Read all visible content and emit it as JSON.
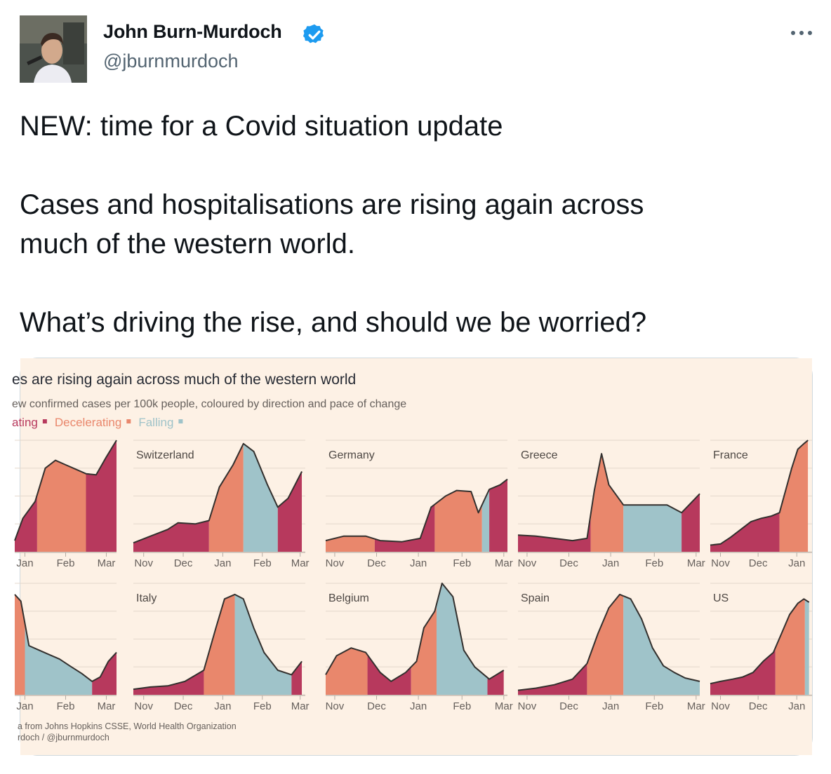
{
  "tweet": {
    "author_name": "John Burn-Murdoch",
    "handle": "@jburnmurdoch",
    "verified": true,
    "text_lines": [
      "NEW: time for a Covid situation update",
      "Cases and hospitalisations are rising again across",
      "much of the western world.",
      "What’s driving the rise, and should we be worried?"
    ]
  },
  "icons": {
    "verified": "verified-badge-icon",
    "more": "more-options-icon",
    "avatar": "avatar"
  },
  "colors": {
    "accelerating": "#b7395d",
    "decelerating": "#e9876c",
    "falling": "#9fc3c9",
    "background": "#fdf1e5",
    "verified": "#1d9bf0"
  },
  "chart_data": {
    "type": "area",
    "title": "es are rising again across much of the western world",
    "subtitle": "ew confirmed cases per 100k people, coloured by direction and pace of change",
    "legend": [
      {
        "label": "ating",
        "category": "accelerating"
      },
      {
        "label": "Decelerating",
        "category": "decelerating"
      },
      {
        "label": "Falling",
        "category": "falling"
      }
    ],
    "source_lines": [
      "a from Johns Hopkins CSSE, World Health Organization",
      "rdoch / @jburnmurdoch"
    ],
    "panels": [
      {
        "row": 0,
        "col": 0,
        "name": "",
        "ticks": [
          "Jan",
          "Feb",
          "Mar"
        ],
        "tickx": [
          0.1,
          0.5,
          0.9
        ],
        "values": [
          [
            0,
            0.1
          ],
          [
            0.08,
            0.3
          ],
          [
            0.2,
            0.45
          ],
          [
            0.3,
            0.75
          ],
          [
            0.4,
            0.82
          ],
          [
            0.5,
            0.78
          ],
          [
            0.6,
            0.74
          ],
          [
            0.7,
            0.7
          ],
          [
            0.8,
            0.69
          ],
          [
            0.9,
            0.85
          ],
          [
            1,
            1.0
          ]
        ],
        "segments": [
          [
            0.22,
            "accelerating"
          ],
          [
            0.7,
            "decelerating"
          ],
          [
            1,
            "accelerating"
          ]
        ]
      },
      {
        "row": 0,
        "col": 1,
        "name": "Switzerland",
        "ticks": [
          "Nov",
          "Dec",
          "Jan",
          "Feb",
          "Mar"
        ],
        "tickx": [
          0.06,
          0.29,
          0.52,
          0.75,
          0.97
        ],
        "values": [
          [
            0,
            0.08
          ],
          [
            0.1,
            0.14
          ],
          [
            0.2,
            0.2
          ],
          [
            0.26,
            0.26
          ],
          [
            0.36,
            0.25
          ],
          [
            0.44,
            0.28
          ],
          [
            0.5,
            0.58
          ],
          [
            0.58,
            0.78
          ],
          [
            0.64,
            0.97
          ],
          [
            0.7,
            0.9
          ],
          [
            0.78,
            0.6
          ],
          [
            0.84,
            0.4
          ],
          [
            0.9,
            0.48
          ],
          [
            0.98,
            0.72
          ]
        ],
        "segments": [
          [
            0.44,
            "accelerating"
          ],
          [
            0.64,
            "decelerating"
          ],
          [
            0.84,
            "falling"
          ],
          [
            0.98,
            "accelerating"
          ]
        ]
      },
      {
        "row": 0,
        "col": 2,
        "name": "Germany",
        "ticks": [
          "Nov",
          "Dec",
          "Jan",
          "Feb",
          "Mar"
        ],
        "tickx": [
          0.05,
          0.28,
          0.51,
          0.75,
          0.98
        ],
        "values": [
          [
            0,
            0.1
          ],
          [
            0.1,
            0.14
          ],
          [
            0.22,
            0.14
          ],
          [
            0.3,
            0.1
          ],
          [
            0.42,
            0.09
          ],
          [
            0.52,
            0.12
          ],
          [
            0.58,
            0.4
          ],
          [
            0.66,
            0.5
          ],
          [
            0.72,
            0.55
          ],
          [
            0.8,
            0.54
          ],
          [
            0.84,
            0.35
          ],
          [
            0.9,
            0.56
          ],
          [
            0.96,
            0.6
          ],
          [
            1,
            0.65
          ]
        ],
        "segments": [
          [
            0.27,
            "decelerating"
          ],
          [
            0.6,
            "accelerating"
          ],
          [
            0.86,
            "decelerating"
          ],
          [
            0.9,
            "falling"
          ],
          [
            1,
            "accelerating"
          ]
        ]
      },
      {
        "row": 0,
        "col": 3,
        "name": "Greece",
        "ticks": [
          "Nov",
          "Dec",
          "Jan",
          "Feb",
          "Mar"
        ],
        "tickx": [
          0.05,
          0.28,
          0.51,
          0.75,
          0.98
        ],
        "values": [
          [
            0,
            0.15
          ],
          [
            0.1,
            0.14
          ],
          [
            0.2,
            0.12
          ],
          [
            0.3,
            0.1
          ],
          [
            0.38,
            0.12
          ],
          [
            0.42,
            0.55
          ],
          [
            0.46,
            0.88
          ],
          [
            0.5,
            0.6
          ],
          [
            0.58,
            0.42
          ],
          [
            0.66,
            0.42
          ],
          [
            0.74,
            0.42
          ],
          [
            0.82,
            0.42
          ],
          [
            0.9,
            0.35
          ],
          [
            1,
            0.52
          ]
        ],
        "segments": [
          [
            0.4,
            "accelerating"
          ],
          [
            0.58,
            "decelerating"
          ],
          [
            0.9,
            "falling"
          ],
          [
            1,
            "accelerating"
          ]
        ]
      },
      {
        "row": 0,
        "col": 4,
        "name": "France",
        "ticks": [
          "Nov",
          "Dec",
          "Jan"
        ],
        "tickx": [
          0.1,
          0.47,
          0.85
        ],
        "values": [
          [
            0,
            0.06
          ],
          [
            0.1,
            0.07
          ],
          [
            0.2,
            0.13
          ],
          [
            0.3,
            0.2
          ],
          [
            0.4,
            0.27
          ],
          [
            0.5,
            0.3
          ],
          [
            0.6,
            0.32
          ],
          [
            0.68,
            0.35
          ],
          [
            0.74,
            0.55
          ],
          [
            0.8,
            0.75
          ],
          [
            0.86,
            0.92
          ],
          [
            0.92,
            0.97
          ],
          [
            0.96,
            1.0
          ]
        ],
        "segments": [
          [
            0.68,
            "accelerating"
          ],
          [
            0.96,
            "decelerating"
          ]
        ]
      },
      {
        "row": 1,
        "col": 0,
        "name": "",
        "ticks": [
          "Jan",
          "Feb",
          "Mar"
        ],
        "tickx": [
          0.1,
          0.5,
          0.9
        ],
        "values": [
          [
            0,
            0.9
          ],
          [
            0.06,
            0.84
          ],
          [
            0.14,
            0.44
          ],
          [
            0.24,
            0.4
          ],
          [
            0.34,
            0.36
          ],
          [
            0.44,
            0.32
          ],
          [
            0.54,
            0.26
          ],
          [
            0.66,
            0.19
          ],
          [
            0.76,
            0.12
          ],
          [
            0.84,
            0.16
          ],
          [
            0.92,
            0.3
          ],
          [
            1,
            0.38
          ]
        ],
        "segments": [
          [
            0.1,
            "decelerating"
          ],
          [
            0.76,
            "falling"
          ],
          [
            1,
            "accelerating"
          ]
        ]
      },
      {
        "row": 1,
        "col": 1,
        "name": "Italy",
        "ticks": [
          "Nov",
          "Dec",
          "Jan",
          "Feb",
          "Mar"
        ],
        "tickx": [
          0.06,
          0.29,
          0.52,
          0.75,
          0.97
        ],
        "values": [
          [
            0,
            0.05
          ],
          [
            0.1,
            0.07
          ],
          [
            0.2,
            0.08
          ],
          [
            0.3,
            0.12
          ],
          [
            0.41,
            0.22
          ],
          [
            0.48,
            0.6
          ],
          [
            0.53,
            0.86
          ],
          [
            0.59,
            0.9
          ],
          [
            0.64,
            0.86
          ],
          [
            0.7,
            0.6
          ],
          [
            0.76,
            0.38
          ],
          [
            0.84,
            0.22
          ],
          [
            0.92,
            0.18
          ],
          [
            0.98,
            0.3
          ]
        ],
        "segments": [
          [
            0.41,
            "accelerating"
          ],
          [
            0.59,
            "decelerating"
          ],
          [
            0.92,
            "falling"
          ],
          [
            0.98,
            "accelerating"
          ]
        ]
      },
      {
        "row": 1,
        "col": 2,
        "name": "Belgium",
        "ticks": [
          "Nov",
          "Dec",
          "Jan",
          "Feb",
          "Mar"
        ],
        "tickx": [
          0.05,
          0.28,
          0.51,
          0.75,
          0.98
        ],
        "values": [
          [
            0,
            0.18
          ],
          [
            0.06,
            0.35
          ],
          [
            0.14,
            0.42
          ],
          [
            0.22,
            0.38
          ],
          [
            0.3,
            0.2
          ],
          [
            0.36,
            0.12
          ],
          [
            0.44,
            0.2
          ],
          [
            0.5,
            0.3
          ],
          [
            0.54,
            0.6
          ],
          [
            0.6,
            0.75
          ],
          [
            0.64,
            1.0
          ],
          [
            0.7,
            0.88
          ],
          [
            0.76,
            0.4
          ],
          [
            0.82,
            0.25
          ],
          [
            0.9,
            0.14
          ],
          [
            0.98,
            0.22
          ]
        ],
        "segments": [
          [
            0.23,
            "decelerating"
          ],
          [
            0.47,
            "accelerating"
          ],
          [
            0.61,
            "decelerating"
          ],
          [
            0.89,
            "falling"
          ],
          [
            0.98,
            "accelerating"
          ]
        ]
      },
      {
        "row": 1,
        "col": 3,
        "name": "Spain",
        "ticks": [
          "Nov",
          "Dec",
          "Jan",
          "Feb",
          "Mar"
        ],
        "tickx": [
          0.05,
          0.28,
          0.51,
          0.75,
          0.98
        ],
        "values": [
          [
            0,
            0.04
          ],
          [
            0.1,
            0.06
          ],
          [
            0.2,
            0.09
          ],
          [
            0.3,
            0.14
          ],
          [
            0.38,
            0.28
          ],
          [
            0.44,
            0.55
          ],
          [
            0.5,
            0.78
          ],
          [
            0.56,
            0.9
          ],
          [
            0.62,
            0.86
          ],
          [
            0.68,
            0.68
          ],
          [
            0.74,
            0.42
          ],
          [
            0.8,
            0.26
          ],
          [
            0.86,
            0.2
          ],
          [
            0.92,
            0.15
          ],
          [
            1,
            0.12
          ]
        ],
        "segments": [
          [
            0.38,
            "accelerating"
          ],
          [
            0.58,
            "decelerating"
          ],
          [
            1,
            "falling"
          ]
        ]
      },
      {
        "row": 1,
        "col": 4,
        "name": "US",
        "ticks": [
          "Nov",
          "Dec",
          "Jan"
        ],
        "tickx": [
          0.1,
          0.47,
          0.85
        ],
        "values": [
          [
            0,
            0.1
          ],
          [
            0.1,
            0.12
          ],
          [
            0.22,
            0.14
          ],
          [
            0.32,
            0.16
          ],
          [
            0.42,
            0.2
          ],
          [
            0.52,
            0.3
          ],
          [
            0.62,
            0.38
          ],
          [
            0.7,
            0.55
          ],
          [
            0.78,
            0.72
          ],
          [
            0.86,
            0.82
          ],
          [
            0.92,
            0.86
          ],
          [
            0.97,
            0.83
          ]
        ],
        "segments": [
          [
            0.64,
            "accelerating"
          ],
          [
            0.93,
            "decelerating"
          ],
          [
            1,
            "falling"
          ]
        ]
      }
    ]
  }
}
